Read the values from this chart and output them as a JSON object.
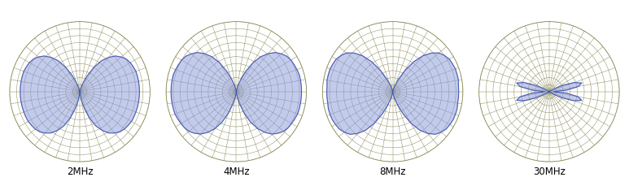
{
  "titles": [
    "2MHz",
    "4MHz",
    "8MHz",
    "30MHz"
  ],
  "bg_color": "#ffffff",
  "grid_color": "#8B8B5A",
  "fill_color": "#8899DD",
  "fill_alpha": 0.5,
  "fill_edge_color": "#4455AA",
  "figsize": [
    7.73,
    2.3
  ],
  "dpi": 100,
  "n_radial_rings": 10,
  "n_angular_lines": 36,
  "title_fontsize": 8.5,
  "patterns": {
    "2MHz": {
      "elev_deg": [
        -90,
        -85,
        -80,
        -75,
        -70,
        -65,
        -60,
        -55,
        -50,
        -45,
        -40,
        -35,
        -30,
        -25,
        -20,
        -15,
        -10,
        -5,
        0,
        5,
        10,
        15,
        20,
        25,
        30,
        35,
        40,
        45,
        50,
        55,
        60,
        65,
        70,
        75,
        80,
        85,
        90
      ],
      "r": [
        0.0,
        0.03,
        0.12,
        0.25,
        0.4,
        0.54,
        0.64,
        0.72,
        0.77,
        0.81,
        0.83,
        0.84,
        0.85,
        0.85,
        0.85,
        0.85,
        0.85,
        0.85,
        0.85,
        0.85,
        0.85,
        0.85,
        0.85,
        0.84,
        0.83,
        0.81,
        0.77,
        0.72,
        0.64,
        0.54,
        0.4,
        0.25,
        0.12,
        0.03,
        0.0,
        0.0,
        0.0
      ]
    },
    "4MHz": {
      "elev_deg": [
        -90,
        -85,
        -80,
        -75,
        -70,
        -65,
        -60,
        -55,
        -50,
        -45,
        -40,
        -35,
        -30,
        -25,
        -20,
        -15,
        -10,
        -5,
        0,
        5,
        10,
        15,
        20,
        25,
        30,
        35,
        40,
        45,
        50,
        55,
        60,
        65,
        70,
        75,
        80,
        85,
        90
      ],
      "r": [
        0.0,
        0.02,
        0.08,
        0.18,
        0.32,
        0.48,
        0.61,
        0.71,
        0.79,
        0.84,
        0.88,
        0.9,
        0.91,
        0.92,
        0.93,
        0.93,
        0.93,
        0.93,
        0.93,
        0.93,
        0.93,
        0.93,
        0.92,
        0.91,
        0.9,
        0.88,
        0.84,
        0.79,
        0.71,
        0.61,
        0.48,
        0.32,
        0.18,
        0.08,
        0.02,
        0.0,
        0.0
      ]
    },
    "8MHz": {
      "elev_deg": [
        -90,
        -85,
        -80,
        -75,
        -70,
        -65,
        -60,
        -55,
        -50,
        -45,
        -40,
        -35,
        -30,
        -25,
        -20,
        -15,
        -10,
        -5,
        0,
        5,
        10,
        15,
        20,
        25,
        30,
        35,
        40,
        45,
        50,
        55,
        60,
        65,
        70,
        75,
        80,
        85,
        90
      ],
      "r": [
        0.0,
        0.01,
        0.04,
        0.1,
        0.2,
        0.35,
        0.52,
        0.67,
        0.78,
        0.86,
        0.9,
        0.93,
        0.94,
        0.95,
        0.95,
        0.95,
        0.94,
        0.94,
        0.94,
        0.94,
        0.95,
        0.95,
        0.95,
        0.94,
        0.93,
        0.9,
        0.86,
        0.78,
        0.67,
        0.52,
        0.35,
        0.2,
        0.1,
        0.04,
        0.01,
        0.0,
        0.0
      ]
    },
    "30MHz": {
      "elev_deg": [
        -90,
        -85,
        -80,
        -75,
        -70,
        -65,
        -60,
        -55,
        -50,
        -45,
        -40,
        -35,
        -30,
        -25,
        -20,
        -15,
        -10,
        -5,
        0,
        5,
        10,
        15,
        20,
        25,
        30,
        35,
        40,
        45,
        50,
        55,
        60,
        65,
        70,
        75,
        80,
        85,
        90
      ],
      "r": [
        0.0,
        0.0,
        0.0,
        0.0,
        0.0,
        0.0,
        0.0,
        0.0,
        0.0,
        0.0,
        0.0,
        0.0,
        0.08,
        0.22,
        0.38,
        0.48,
        0.42,
        0.25,
        0.06,
        0.25,
        0.42,
        0.48,
        0.38,
        0.22,
        0.08,
        0.0,
        0.0,
        0.0,
        0.0,
        0.0,
        0.0,
        0.0,
        0.0,
        0.0,
        0.0,
        0.0,
        0.0
      ]
    }
  }
}
